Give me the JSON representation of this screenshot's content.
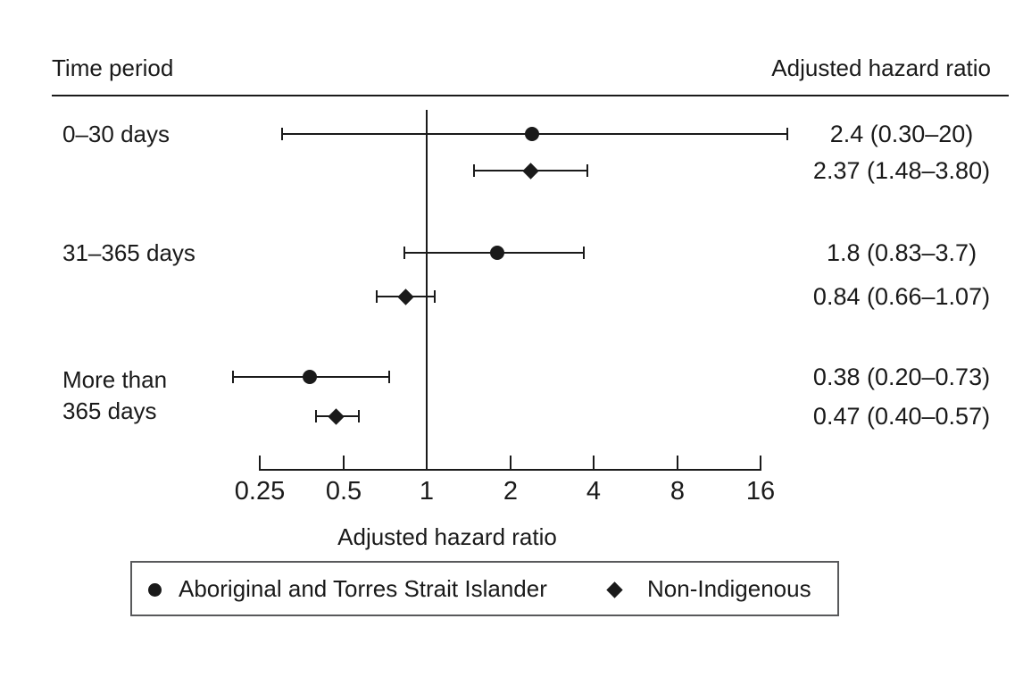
{
  "colors": {
    "background": "#ffffff",
    "ink": "#1a1a1a",
    "legend_border": "#58595b"
  },
  "header": {
    "left": "Time period",
    "right": "Adjusted hazard ratio"
  },
  "chart_data": {
    "type": "forest",
    "x_scale": "log2",
    "x_range": [
      0.25,
      16
    ],
    "reference_line": 1,
    "grid": false,
    "xlabel": "Adjusted hazard ratio",
    "x_ticks": [
      {
        "value": 0.25,
        "label": "0.25"
      },
      {
        "value": 0.5,
        "label": "0.5"
      },
      {
        "value": 1,
        "label": "1"
      },
      {
        "value": 2,
        "label": "2"
      },
      {
        "value": 4,
        "label": "4"
      },
      {
        "value": 8,
        "label": "8"
      },
      {
        "value": 16,
        "label": "16"
      }
    ],
    "groups": [
      {
        "label_lines": [
          "0–30 days"
        ],
        "rows": [
          {
            "series": "Aboriginal and Torres Strait Islander",
            "marker": "circle",
            "hr": 2.4,
            "ci_low": 0.3,
            "ci_high": 20,
            "display": "2.4 (0.30–20)"
          },
          {
            "series": "Non-Indigenous",
            "marker": "diamond",
            "hr": 2.37,
            "ci_low": 1.48,
            "ci_high": 3.8,
            "display": "2.37 (1.48–3.80)"
          }
        ]
      },
      {
        "label_lines": [
          "31–365 days"
        ],
        "rows": [
          {
            "series": "Aboriginal and Torres Strait Islander",
            "marker": "circle",
            "hr": 1.8,
            "ci_low": 0.83,
            "ci_high": 3.7,
            "display": "1.8 (0.83–3.7)"
          },
          {
            "series": "Non-Indigenous",
            "marker": "diamond",
            "hr": 0.84,
            "ci_low": 0.66,
            "ci_high": 1.07,
            "display": "0.84 (0.66–1.07)"
          }
        ]
      },
      {
        "label_lines": [
          "More than",
          "365 days"
        ],
        "rows": [
          {
            "series": "Aboriginal and Torres Strait Islander",
            "marker": "circle",
            "hr": 0.38,
            "ci_low": 0.2,
            "ci_high": 0.73,
            "display": "0.38 (0.20–0.73)"
          },
          {
            "series": "Non-Indigenous",
            "marker": "diamond",
            "hr": 0.47,
            "ci_low": 0.4,
            "ci_high": 0.57,
            "display": "0.47 (0.40–0.57)"
          }
        ]
      }
    ],
    "legend": [
      {
        "marker": "circle",
        "label": "Aboriginal and Torres Strait Islander"
      },
      {
        "marker": "diamond",
        "label": "Non-Indigenous"
      }
    ]
  }
}
